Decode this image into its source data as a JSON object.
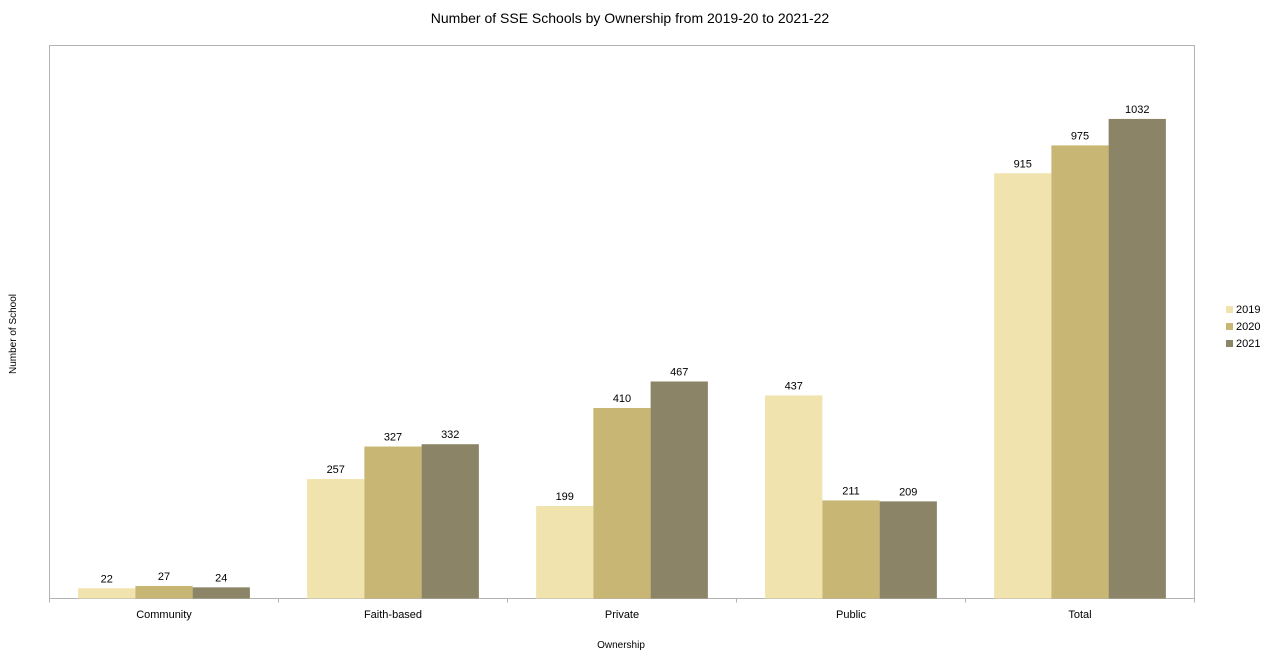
{
  "chart_data": {
    "type": "bar",
    "title": "Number of SSE Schools by Ownership from 2019-20 to 2021-22",
    "xlabel": "Ownership",
    "ylabel": "Number of School",
    "categories": [
      "Community",
      "Faith-based",
      "Private",
      "Public",
      "Total"
    ],
    "series": [
      {
        "name": "2019",
        "color": "#f0e3ad",
        "values": [
          22,
          257,
          199,
          437,
          915
        ]
      },
      {
        "name": "2020",
        "color": "#c8b674",
        "values": [
          27,
          327,
          410,
          211,
          975
        ]
      },
      {
        "name": "2021",
        "color": "#8b8466",
        "values": [
          24,
          332,
          467,
          209,
          1032
        ]
      }
    ],
    "ylim": [
      0,
      1190
    ],
    "grid": false,
    "legend_position": "right",
    "data_labels": true
  }
}
